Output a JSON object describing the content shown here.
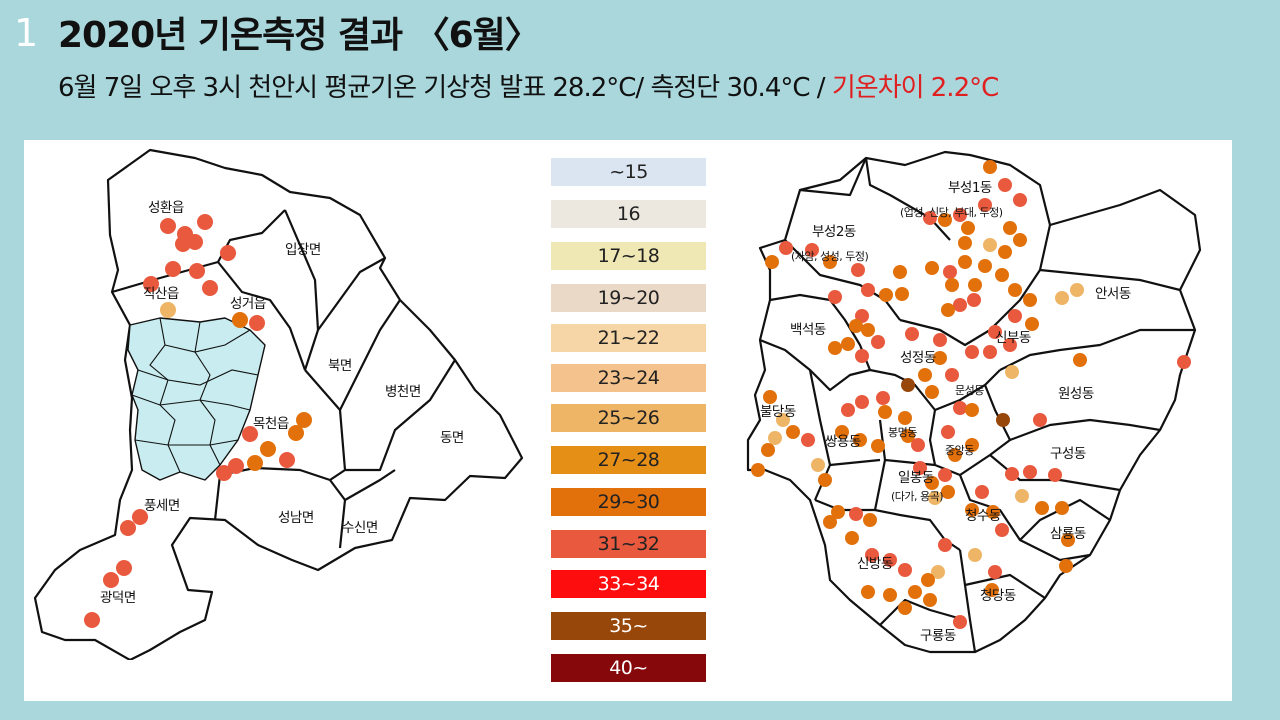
{
  "slide_number": "1",
  "title": "2020년 기온측정 결과 〈6월〉",
  "subtitle": {
    "main": "6월 7일 오후 3시 천안시 평균기온 기상청 발표  28.2°C/ 측정단 30.4°C  / ",
    "highlight": "기온차이 2.2°C"
  },
  "legend": [
    {
      "label": "~15",
      "color": "#dbe5f2"
    },
    {
      "label": "16",
      "color": "#ece8df"
    },
    {
      "label": "17~18",
      "color": "#efe7b4"
    },
    {
      "label": "19~20",
      "color": "#ead9c7"
    },
    {
      "label": "21~22",
      "color": "#f6d6a6"
    },
    {
      "label": "23~24",
      "color": "#f4c28c"
    },
    {
      "label": "25~26",
      "color": "#efb566"
    },
    {
      "label": "27~28",
      "color": "#e68f17"
    },
    {
      "label": "29~30",
      "color": "#e2710c"
    },
    {
      "label": "31~32",
      "color": "#e8593e"
    },
    {
      "label": "33~34",
      "color": "#fd0d0d"
    },
    {
      "label": "35~",
      "color": "#98470a"
    },
    {
      "label": "40~",
      "color": "#86080b"
    }
  ],
  "west_map": {
    "labels": {
      "seonghwan": "성환읍",
      "ipjang": "입장면",
      "jiksan": "직산읍",
      "seonggeo": "성거읍",
      "buk": "북면",
      "byeongcheon": "병천면",
      "mokcheon": "목천읍",
      "dong": "동면",
      "pungse": "풍세면",
      "seongnam": "성남면",
      "susin": "수신면",
      "gwangdeok": "광덕면"
    }
  },
  "east_map": {
    "labels": {
      "buseong1": "부성1동",
      "buseong1_sub": "(업성, 신당, 부대, 두정)",
      "buseong2": "부성2동",
      "buseong2_sub": "(차암, 성성, 두정)",
      "anseo": "안서동",
      "baekseok": "백석동",
      "sinbu": "신부동",
      "seongjeong": "성정동",
      "munseong": "문성동",
      "wonseong": "원성동",
      "buldang": "불당동",
      "ssangyong": "쌍용동",
      "bongmyeong": "봉명동",
      "jungang": "중앙동",
      "guseong": "구성동",
      "ilbong": "일봉동",
      "ilbong_sub": "(다가, 용곡)",
      "cheongsu": "청수동",
      "samnyong": "삼룡동",
      "sinbang": "신방동",
      "cheongdang": "청당동",
      "guryong": "구룡동"
    }
  }
}
